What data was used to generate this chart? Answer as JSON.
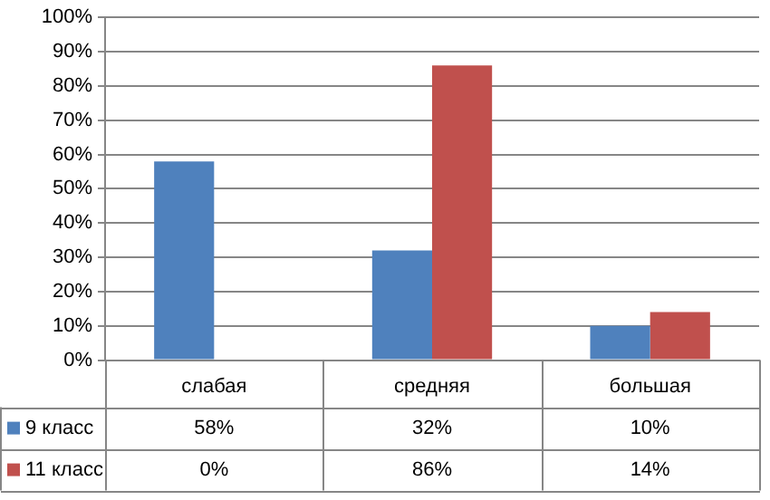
{
  "chart_data": {
    "type": "bar",
    "categories": [
      "слабая",
      "средняя",
      "большая"
    ],
    "series": [
      {
        "name": "9 класс",
        "color": "#4f81bd",
        "values": [
          58,
          32,
          10
        ],
        "value_labels": [
          "58%",
          "32%",
          "10%"
        ]
      },
      {
        "name": "11 класс",
        "color": "#c0504d",
        "values": [
          0,
          86,
          14
        ],
        "value_labels": [
          "0%",
          "86%",
          "14%"
        ]
      }
    ],
    "ylim": [
      0,
      100
    ],
    "yticks": [
      {
        "value": 0,
        "label": "0%"
      },
      {
        "value": 10,
        "label": "10%"
      },
      {
        "value": 20,
        "label": "20%"
      },
      {
        "value": 30,
        "label": "30%"
      },
      {
        "value": 40,
        "label": "40%"
      },
      {
        "value": 50,
        "label": "50%"
      },
      {
        "value": 60,
        "label": "60%"
      },
      {
        "value": 70,
        "label": "70%"
      },
      {
        "value": 80,
        "label": "80%"
      },
      {
        "value": 90,
        "label": "90%"
      },
      {
        "value": 100,
        "label": "100%"
      }
    ],
    "grid": "y",
    "legend": "bottom left"
  }
}
